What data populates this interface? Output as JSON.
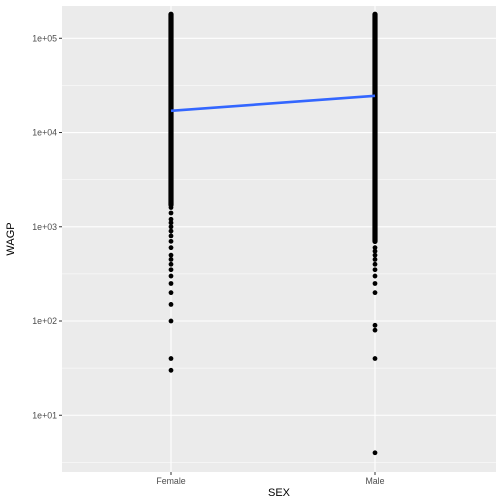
{
  "chart_data": {
    "type": "scatter",
    "title": "",
    "xlabel": "SEX",
    "ylabel": "WAGP",
    "y_scale": "log10",
    "ylim": [
      2.5,
      220000
    ],
    "grid": true,
    "legend": "none",
    "categories": [
      "Female",
      "Male"
    ],
    "y_ticks": [
      {
        "value": 10,
        "label": "1e+01"
      },
      {
        "value": 100,
        "label": "1e+02"
      },
      {
        "value": 1000,
        "label": "1e+03"
      },
      {
        "value": 10000,
        "label": "1e+04"
      },
      {
        "value": 100000,
        "label": "1e+05"
      }
    ],
    "colors": {
      "panel": "#ebebeb",
      "grid_major": "#ffffff",
      "points": "#000000",
      "trend": "#3366ff"
    },
    "series": [
      {
        "category": "Female",
        "values": [
          30,
          40,
          100,
          150,
          200,
          250,
          300,
          350,
          400,
          450,
          500,
          600,
          700,
          800,
          900,
          1000,
          1100,
          1200,
          1400,
          1600,
          1800,
          2000,
          2300,
          2600,
          3000,
          3500,
          4000,
          4500,
          5000,
          6000,
          7000,
          8000,
          9000,
          10000,
          12000,
          14000,
          16000,
          18000,
          20000,
          25000,
          30000,
          35000,
          40000,
          50000,
          60000,
          70000,
          80000,
          90000,
          100000,
          120000,
          140000,
          160000,
          175000
        ]
      },
      {
        "category": "Male",
        "values": [
          4,
          40,
          80,
          90,
          200,
          250,
          300,
          350,
          400,
          450,
          500,
          550,
          600,
          700,
          800,
          900,
          1000,
          1200,
          1400,
          1600,
          1800,
          2000,
          2500,
          3000,
          3500,
          4000,
          4500,
          5000,
          6000,
          7000,
          8000,
          9000,
          10000,
          12000,
          14000,
          16000,
          18000,
          20000,
          25000,
          30000,
          35000,
          40000,
          50000,
          60000,
          70000,
          80000,
          90000,
          100000,
          120000,
          140000,
          160000,
          175000
        ]
      }
    ],
    "trend_line": {
      "points": [
        {
          "x": "Female",
          "y": 17000
        },
        {
          "x": "Male",
          "y": 24500
        }
      ]
    }
  }
}
